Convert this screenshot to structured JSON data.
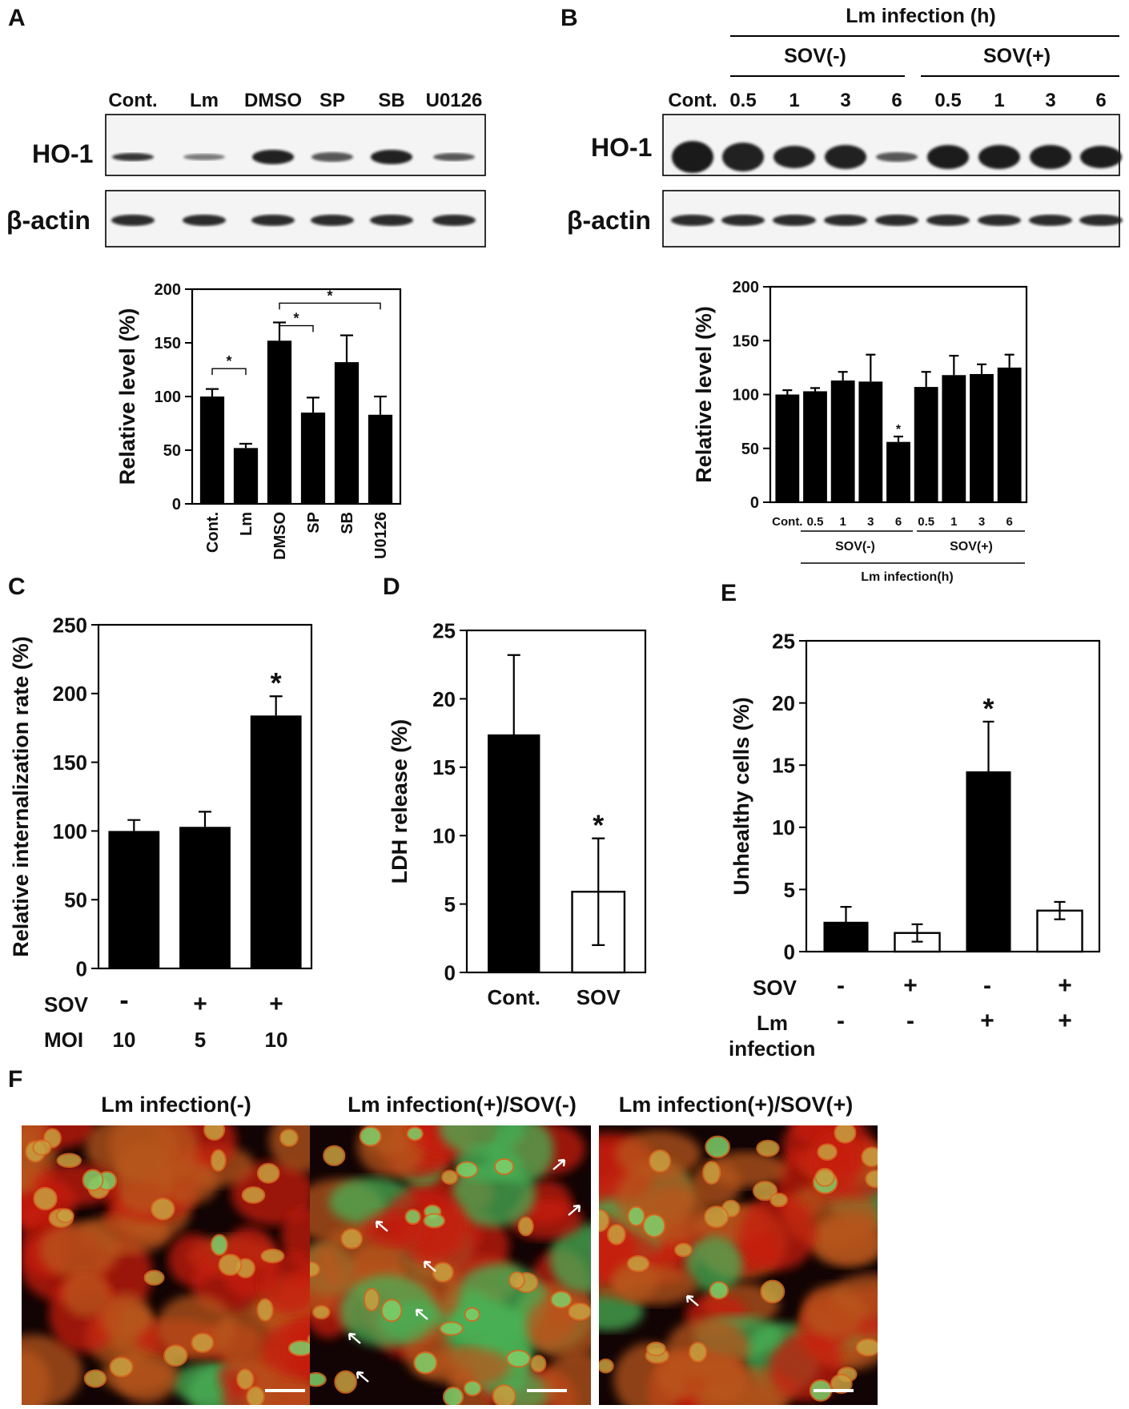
{
  "panels": {
    "A": {
      "letter": "A",
      "blot": {
        "lanes": [
          "Cont.",
          "Lm",
          "DMSO",
          "SP",
          "SB",
          "U0126"
        ],
        "rows": [
          "HO-1",
          "β-actin"
        ]
      }
    },
    "B": {
      "letter": "B",
      "blot": {
        "header": "Lm infection (h)",
        "groups": [
          "SOV(-)",
          "SOV(+)"
        ],
        "lanes": [
          "Cont.",
          "0.5",
          "1",
          "3",
          "6",
          "0.5",
          "1",
          "3",
          "6"
        ],
        "rows": [
          "HO-1",
          "β-actin"
        ]
      },
      "group_footer": "Lm infection(h)"
    },
    "C": {
      "letter": "C",
      "row_labels": [
        "SOV",
        "MOI"
      ],
      "sov": [
        "-",
        "+",
        "+"
      ],
      "moi": [
        "10",
        "5",
        "10"
      ]
    },
    "D": {
      "letter": "D"
    },
    "E": {
      "letter": "E",
      "row_labels": [
        "SOV",
        "Lm",
        "infection"
      ],
      "sov": [
        "-",
        "+",
        "-",
        "+"
      ],
      "lm": [
        "-",
        "-",
        "+",
        "+"
      ]
    },
    "F": {
      "letter": "F",
      "titles": [
        "Lm infection(-)",
        "Lm infection(+)/SOV(-)",
        "Lm infection(+)/SOV(+)"
      ],
      "colors": {
        "background": "#120404",
        "membrane": "#c81a10",
        "cytoplasm": "#b8561c",
        "infected": "#48b055"
      }
    }
  },
  "chart_data": [
    {
      "panel": "A",
      "type": "bar",
      "categories": [
        "Cont.",
        "Lm",
        "DMSO",
        "SP",
        "SB",
        "U0126"
      ],
      "values": [
        100,
        52,
        152,
        85,
        132,
        83
      ],
      "errors": [
        7,
        4,
        17,
        14,
        25,
        17
      ],
      "ylabel": "Relative level (%)",
      "ylim": [
        0,
        200
      ],
      "yticks": [
        0,
        50,
        100,
        150,
        200
      ],
      "significance": [
        {
          "from": "Cont.",
          "to": "Lm",
          "label": "*"
        },
        {
          "from": "DMSO",
          "to": "SP",
          "label": "*"
        },
        {
          "from": "DMSO",
          "to": "U0126",
          "label": "*"
        }
      ]
    },
    {
      "panel": "B",
      "type": "bar",
      "categories": [
        "Cont.",
        "0.5",
        "1",
        "3",
        "6",
        "0.5",
        "1",
        "3",
        "6"
      ],
      "values": [
        100,
        103,
        113,
        112,
        56,
        107,
        118,
        119,
        125
      ],
      "errors": [
        4,
        3,
        8,
        25,
        5,
        14,
        18,
        9,
        12
      ],
      "groups": [
        {
          "label": "SOV(-)",
          "members": [
            1,
            4
          ]
        },
        {
          "label": "SOV(+)",
          "members": [
            5,
            8
          ]
        }
      ],
      "ylabel": "Relative level (%)",
      "ylim": [
        0,
        200
      ],
      "yticks": [
        0,
        50,
        100,
        150,
        200
      ],
      "star_on": [
        4
      ],
      "star": "*"
    },
    {
      "panel": "C",
      "type": "bar",
      "categories": [
        "1",
        "2",
        "3"
      ],
      "values": [
        100,
        103,
        184
      ],
      "errors": [
        8,
        11,
        14
      ],
      "ylabel": "Relative internalization rate (%)",
      "ylim": [
        0,
        250
      ],
      "yticks": [
        0,
        50,
        100,
        150,
        200,
        250
      ],
      "star_on": [
        2
      ],
      "star": "*"
    },
    {
      "panel": "D",
      "type": "bar",
      "categories": [
        "Cont.",
        "SOV"
      ],
      "values": [
        17.4,
        5.9
      ],
      "errors": [
        5.8,
        3.9
      ],
      "fills": [
        "black",
        "white"
      ],
      "ylabel": "LDH release (%)",
      "ylim": [
        0,
        25
      ],
      "yticks": [
        0,
        5,
        10,
        15,
        20,
        25
      ],
      "star_on": [
        1
      ],
      "star": "*"
    },
    {
      "panel": "E",
      "type": "bar",
      "categories": [
        "1",
        "2",
        "3",
        "4"
      ],
      "values": [
        2.4,
        1.5,
        14.5,
        3.3
      ],
      "errors": [
        1.2,
        0.7,
        4.0,
        0.7
      ],
      "fills": [
        "black",
        "white",
        "black",
        "white"
      ],
      "ylabel": "Unhealthy cells (%)",
      "ylim": [
        0,
        25
      ],
      "yticks": [
        0,
        5,
        10,
        15,
        20,
        25
      ],
      "star_on": [
        2
      ],
      "star": "*"
    }
  ]
}
